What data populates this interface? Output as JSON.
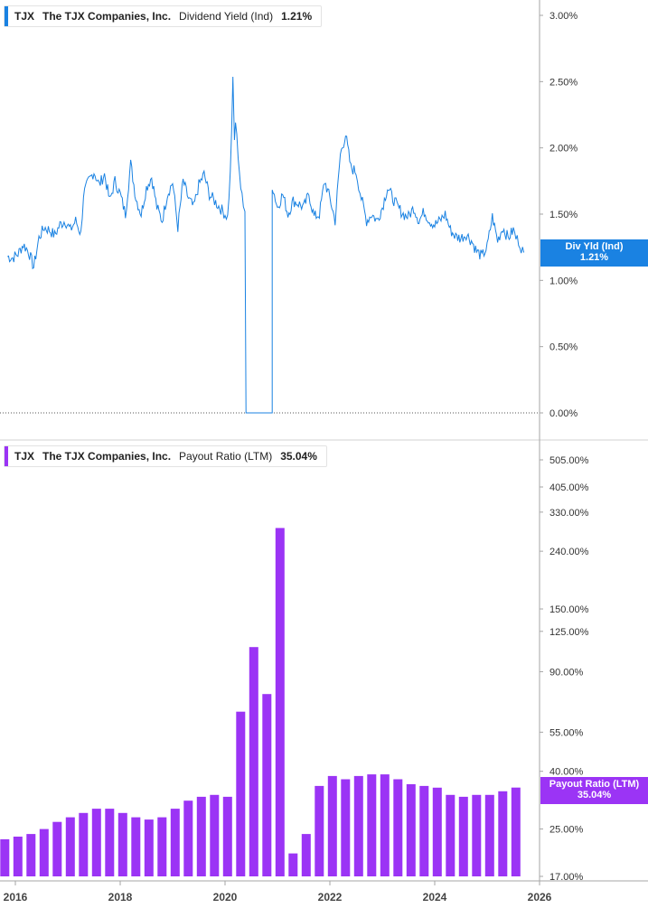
{
  "colors": {
    "yield": "#1a82e2",
    "payout": "#9b34f5",
    "axis": "#a6a6a6",
    "text": "#333333"
  },
  "top_panel": {
    "legend": {
      "ticker": "TJX",
      "company": "The TJX Companies, Inc.",
      "metric": "Dividend Yield (Ind)",
      "value": "1.21%"
    },
    "tag": {
      "label": "Div Yld (Ind)",
      "value": "1.21%"
    }
  },
  "bottom_panel": {
    "legend": {
      "ticker": "TJX",
      "company": "The TJX Companies, Inc.",
      "metric": "Payout Ratio (LTM)",
      "value": "35.04%"
    },
    "tag": {
      "label": "Payout Ratio (LTM)",
      "value": "35.04%"
    }
  },
  "chart_data": [
    {
      "type": "line",
      "series": [
        {
          "name": "Dividend Yield (Ind)",
          "x": [
            2015.85,
            2015.95,
            2016.05,
            2016.15,
            2016.25,
            2016.35,
            2016.45,
            2016.55,
            2016.65,
            2016.75,
            2016.85,
            2016.95,
            2017.05,
            2017.15,
            2017.25,
            2017.3,
            2017.4,
            2017.5,
            2017.6,
            2017.7,
            2017.8,
            2017.9,
            2018.0,
            2018.1,
            2018.2,
            2018.3,
            2018.4,
            2018.5,
            2018.6,
            2018.7,
            2018.8,
            2018.9,
            2019.0,
            2019.1,
            2019.2,
            2019.3,
            2019.4,
            2019.5,
            2019.6,
            2019.7,
            2019.8,
            2019.9,
            2020.0,
            2020.05,
            2020.1,
            2020.15,
            2020.18,
            2020.2,
            2020.25,
            2020.3,
            2020.35,
            2020.38,
            2020.4,
            2020.4,
            2020.9,
            2020.9,
            2021.0,
            2021.1,
            2021.2,
            2021.3,
            2021.4,
            2021.5,
            2021.6,
            2021.7,
            2021.8,
            2021.9,
            2022.0,
            2022.1,
            2022.2,
            2022.3,
            2022.4,
            2022.5,
            2022.55,
            2022.6,
            2022.7,
            2022.8,
            2022.9,
            2023.0,
            2023.1,
            2023.2,
            2023.3,
            2023.4,
            2023.5,
            2023.6,
            2023.7,
            2023.8,
            2023.9,
            2024.0,
            2024.1,
            2024.2,
            2024.3,
            2024.4,
            2024.5,
            2024.6,
            2024.7,
            2024.8,
            2024.9,
            2025.0,
            2025.1,
            2025.2,
            2025.3,
            2025.4,
            2025.5,
            2025.55,
            2025.6,
            2025.65,
            2025.7
          ],
          "values": [
            1.18,
            1.17,
            1.2,
            1.27,
            1.22,
            1.1,
            1.32,
            1.4,
            1.38,
            1.34,
            1.42,
            1.45,
            1.38,
            1.45,
            1.35,
            1.65,
            1.75,
            1.82,
            1.72,
            1.8,
            1.6,
            1.75,
            1.65,
            1.5,
            1.88,
            1.62,
            1.5,
            1.7,
            1.78,
            1.55,
            1.45,
            1.65,
            1.74,
            1.4,
            1.75,
            1.62,
            1.55,
            1.72,
            1.8,
            1.65,
            1.6,
            1.55,
            1.5,
            1.48,
            1.8,
            2.5,
            2.05,
            2.2,
            1.95,
            1.7,
            1.55,
            1.52,
            0.0,
            0.0,
            0.0,
            1.72,
            1.55,
            1.65,
            1.5,
            1.6,
            1.58,
            1.55,
            1.65,
            1.48,
            1.5,
            1.75,
            1.62,
            1.45,
            1.95,
            2.1,
            1.85,
            1.82,
            1.72,
            1.62,
            1.45,
            1.5,
            1.45,
            1.55,
            1.7,
            1.62,
            1.55,
            1.5,
            1.48,
            1.55,
            1.45,
            1.52,
            1.45,
            1.42,
            1.45,
            1.5,
            1.38,
            1.33,
            1.32,
            1.35,
            1.3,
            1.22,
            1.18,
            1.25,
            1.48,
            1.3,
            1.4,
            1.32,
            1.38,
            1.32,
            1.3,
            1.25,
            1.21
          ]
        }
      ],
      "yticks": [
        "0.00%",
        "0.50%",
        "1.00%",
        "1.50%",
        "2.00%",
        "2.50%",
        "3.00%"
      ],
      "ylim": [
        0,
        3
      ],
      "xlim": [
        2015.85,
        2026.0
      ]
    },
    {
      "type": "bar",
      "scale": "log",
      "series": [
        {
          "name": "Payout Ratio (LTM)",
          "x": [
            2015.85,
            2016.1,
            2016.35,
            2016.6,
            2016.85,
            2017.1,
            2017.35,
            2017.6,
            2017.85,
            2018.1,
            2018.35,
            2018.6,
            2018.85,
            2019.1,
            2019.35,
            2019.6,
            2019.85,
            2020.1,
            2020.35,
            2020.6,
            2020.85,
            2021.1,
            2021.35,
            2021.6,
            2021.85,
            2022.1,
            2022.35,
            2022.6,
            2022.85,
            2023.1,
            2023.35,
            2023.6,
            2023.85,
            2024.1,
            2024.35,
            2024.6,
            2024.85,
            2025.1,
            2025.35,
            2025.6
          ],
          "values": [
            23.0,
            23.5,
            24.0,
            25.0,
            26.5,
            27.5,
            28.5,
            29.5,
            29.5,
            28.5,
            27.5,
            27.0,
            27.5,
            29.5,
            31.5,
            32.5,
            33.0,
            32.5,
            65.0,
            110.0,
            75.0,
            290.0,
            20.5,
            24.0,
            35.5,
            38.5,
            37.5,
            38.5,
            39.0,
            39.0,
            37.5,
            36.0,
            35.5,
            35.0,
            33.0,
            32.5,
            33.0,
            33.0,
            34.0,
            35.04
          ]
        }
      ],
      "yticks": [
        "17.00%",
        "25.00%",
        "40.00%",
        "55.00%",
        "90.00%",
        "125.00%",
        "150.00%",
        "240.00%",
        "330.00%",
        "405.00%",
        "505.00%"
      ],
      "ylim": [
        17,
        505
      ]
    }
  ],
  "x_axis": {
    "ticks": [
      "2016",
      "2018",
      "2020",
      "2022",
      "2024",
      "2026"
    ]
  }
}
